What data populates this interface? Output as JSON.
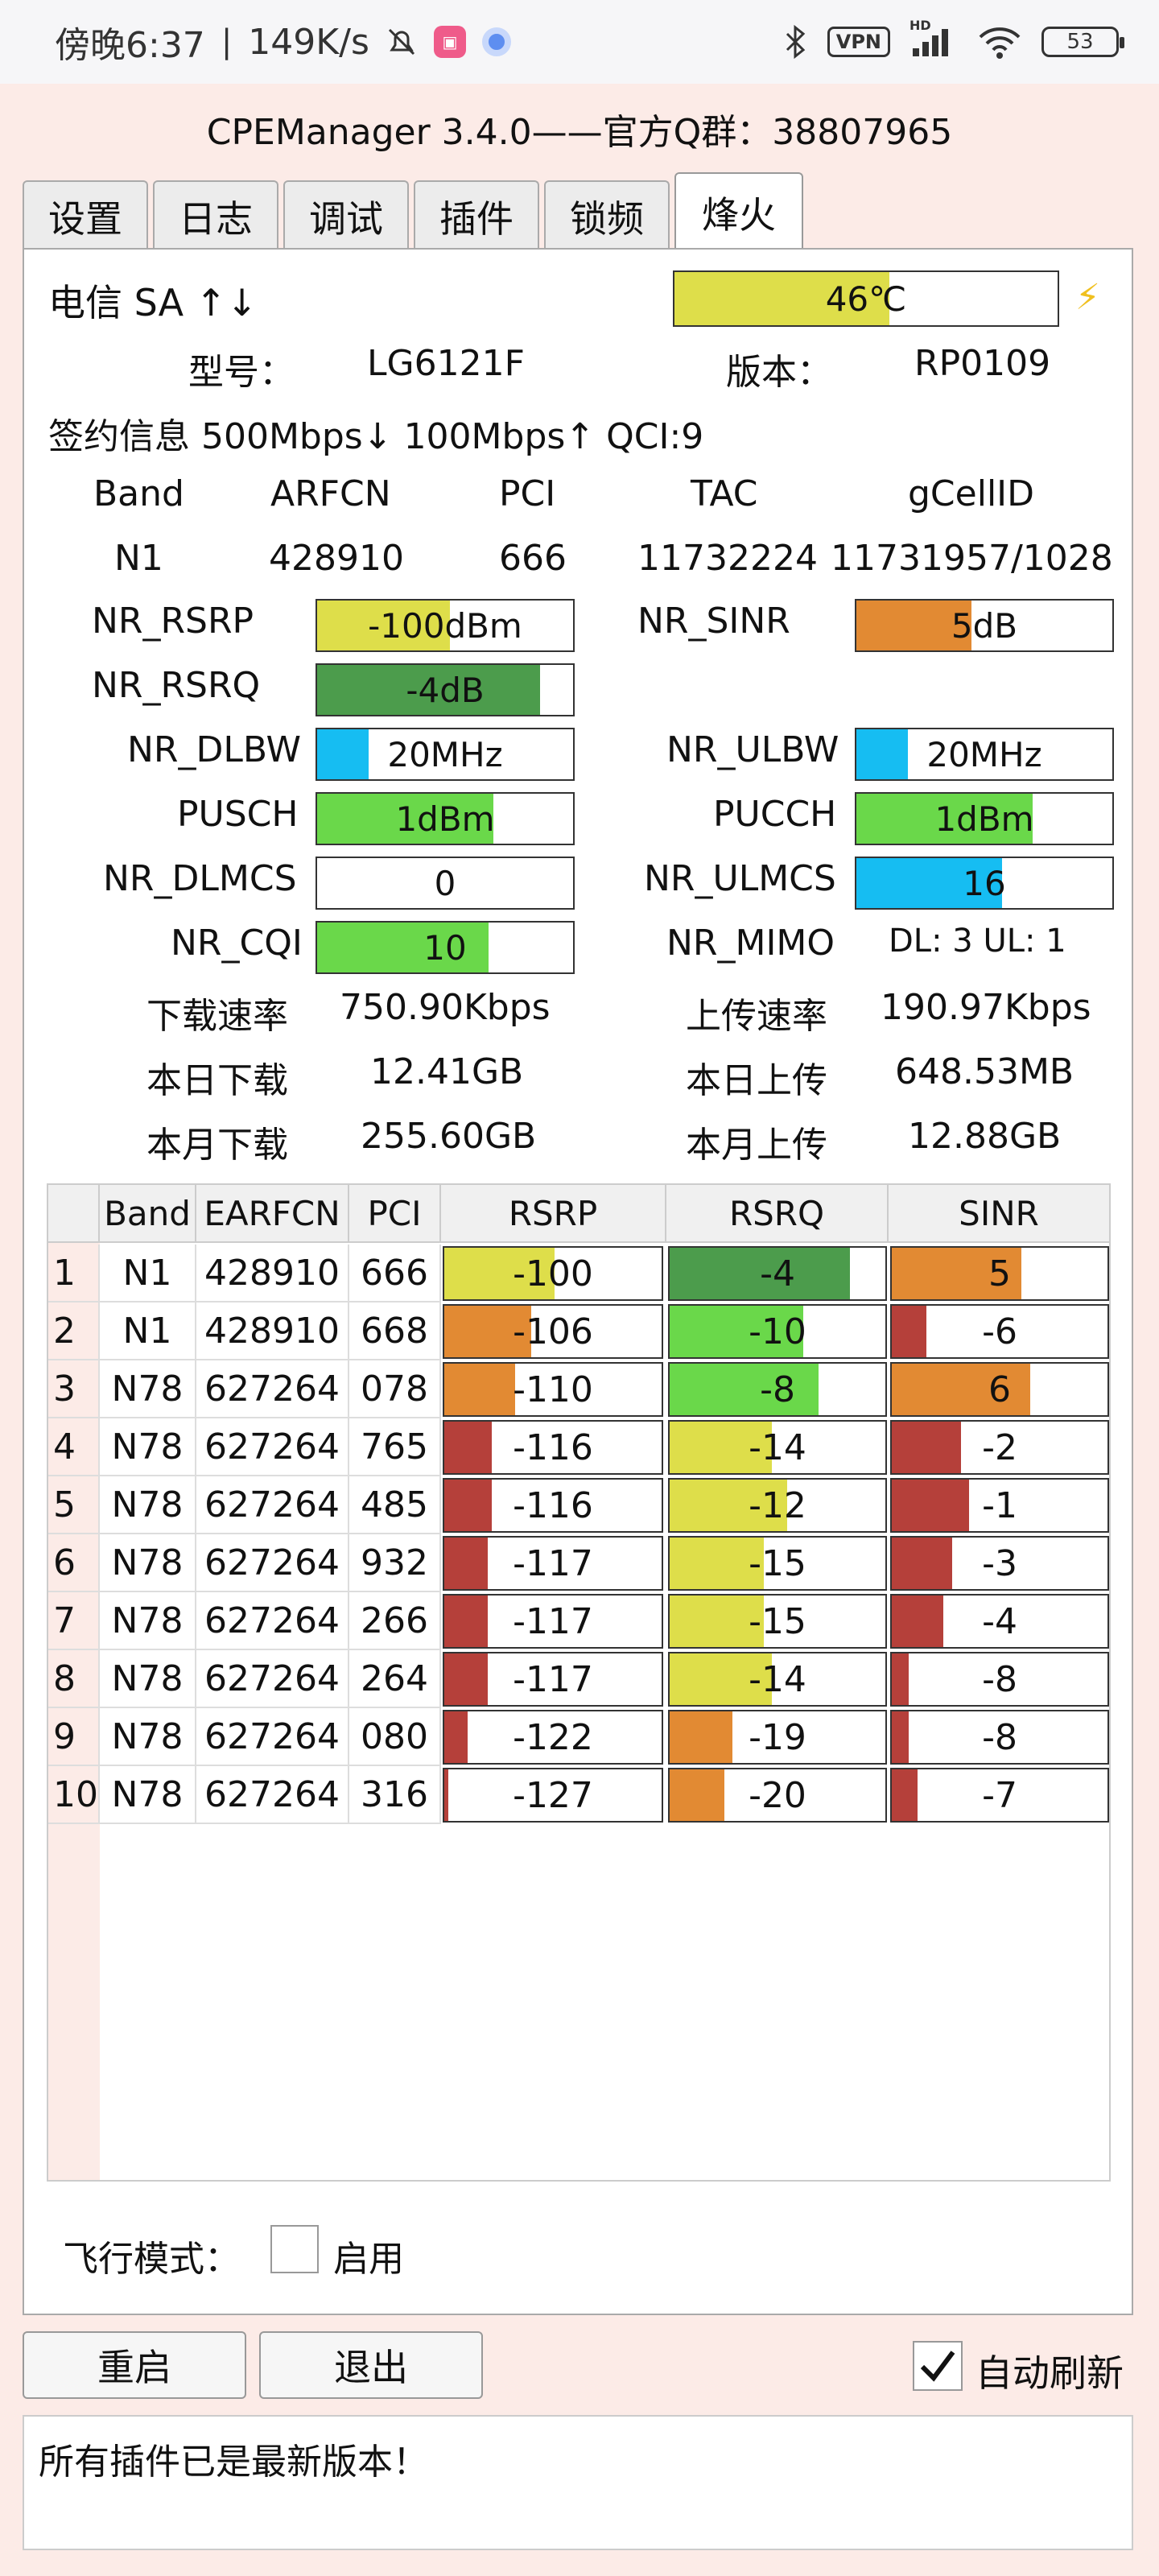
{
  "status_bar": {
    "time": "傍晚6:37",
    "net_speed": "149K/s",
    "vpn": "VPN",
    "signal_tag": "HD",
    "battery": "53"
  },
  "app": {
    "title": "CPEManager 3.4.0——官方Q群：38807965"
  },
  "tabs": [
    "设置",
    "日志",
    "调试",
    "插件",
    "锁频",
    "烽火"
  ],
  "device": {
    "carrier": "电信 SA ↑↓",
    "temperature": "46℃",
    "temperature_value": 46,
    "model_label": "型号：",
    "model": "LG6121F",
    "version_label": "版本：",
    "version": "RP0109",
    "subscription": "签约信息 500Mbps↓ 100Mbps↑ QCI:9"
  },
  "cell_header": [
    "Band",
    "ARFCN",
    "PCI",
    "TAC",
    "gCellID"
  ],
  "cell_values": [
    "N1",
    "428910",
    "666",
    "11732224",
    "11731957/1028"
  ],
  "metrics": {
    "nr_rsrp": {
      "label": "NR_RSRP",
      "value": "-100dBm",
      "fill": 0.52,
      "color": "#dede4a"
    },
    "nr_sinr": {
      "label": "NR_SINR",
      "value": "5dB",
      "fill": 0.45,
      "color": "#e28a33"
    },
    "nr_rsrq": {
      "label": "NR_RSRQ",
      "value": "-4dB",
      "fill": 0.87,
      "color": "#4c9c4c"
    },
    "nr_dlbw": {
      "label": "NR_DLBW",
      "value": "20MHz",
      "fill": 0.2,
      "color": "#16bdf2"
    },
    "nr_ulbw": {
      "label": "NR_ULBW",
      "value": "20MHz",
      "fill": 0.2,
      "color": "#16bdf2"
    },
    "pusch": {
      "label": "PUSCH",
      "value": "1dBm",
      "fill": 0.69,
      "color": "#6ad84a"
    },
    "pucch": {
      "label": "PUCCH",
      "value": "1dBm",
      "fill": 0.69,
      "color": "#6ad84a"
    },
    "nr_dlmcs": {
      "label": "NR_DLMCS",
      "value": "0",
      "fill": 0,
      "color": "#16bdf2"
    },
    "nr_ulmcs": {
      "label": "NR_ULMCS",
      "value": "16",
      "fill": 0.57,
      "color": "#16bdf2"
    },
    "nr_cqi": {
      "label": "NR_CQI",
      "value": "10",
      "fill": 0.67,
      "color": "#6ad84a"
    },
    "nr_mimo": {
      "label": "NR_MIMO",
      "value": "DL: 3 UL: 1"
    }
  },
  "speeds": {
    "dl_rate_label": "下载速率",
    "dl_rate": "750.90Kbps",
    "ul_rate_label": "上传速率",
    "ul_rate": "190.97Kbps",
    "dl_today_label": "本日下载",
    "dl_today": "12.41GB",
    "ul_today_label": "本日上传",
    "ul_today": "648.53MB",
    "dl_month_label": "本月下载",
    "dl_month": "255.60GB",
    "ul_month_label": "本月上传",
    "ul_month": "12.88GB"
  },
  "neighbor_table": {
    "headers": [
      "Band",
      "EARFCN",
      "PCI",
      "RSRP",
      "RSRQ",
      "SINR"
    ],
    "rows": [
      {
        "idx": "1",
        "band": "N1",
        "earfcn": "428910",
        "pci": "666",
        "rsrp": "-100",
        "rsrq": "-4",
        "sinr": "5"
      },
      {
        "idx": "2",
        "band": "N1",
        "earfcn": "428910",
        "pci": "668",
        "rsrp": "-106",
        "rsrq": "-10",
        "sinr": "-6"
      },
      {
        "idx": "3",
        "band": "N78",
        "earfcn": "627264",
        "pci": "078",
        "rsrp": "-110",
        "rsrq": "-8",
        "sinr": "6"
      },
      {
        "idx": "4",
        "band": "N78",
        "earfcn": "627264",
        "pci": "765",
        "rsrp": "-116",
        "rsrq": "-14",
        "sinr": "-2"
      },
      {
        "idx": "5",
        "band": "N78",
        "earfcn": "627264",
        "pci": "485",
        "rsrp": "-116",
        "rsrq": "-12",
        "sinr": "-1"
      },
      {
        "idx": "6",
        "band": "N78",
        "earfcn": "627264",
        "pci": "932",
        "rsrp": "-117",
        "rsrq": "-15",
        "sinr": "-3"
      },
      {
        "idx": "7",
        "band": "N78",
        "earfcn": "627264",
        "pci": "266",
        "rsrp": "-117",
        "rsrq": "-15",
        "sinr": "-4"
      },
      {
        "idx": "8",
        "band": "N78",
        "earfcn": "627264",
        "pci": "264",
        "rsrp": "-117",
        "rsrq": "-14",
        "sinr": "-8"
      },
      {
        "idx": "9",
        "band": "N78",
        "earfcn": "627264",
        "pci": "080",
        "rsrp": "-122",
        "rsrq": "-19",
        "sinr": "-8"
      },
      {
        "idx": "10",
        "band": "N78",
        "earfcn": "627264",
        "pci": "316",
        "rsrp": "-127",
        "rsrq": "-20",
        "sinr": "-7"
      }
    ]
  },
  "airplane_label": "飞行模式：",
  "enable_label": "启用",
  "buttons": {
    "restart": "重启",
    "exit": "退出"
  },
  "auto_refresh_label": "自动刷新",
  "message": "所有插件已是最新版本！",
  "colors": {
    "yellow": "#dede4a",
    "orange": "#e28a33",
    "green_dark": "#4c9c4c",
    "green": "#6ad84a",
    "red": "#b5403a",
    "cyan": "#16bdf2"
  }
}
